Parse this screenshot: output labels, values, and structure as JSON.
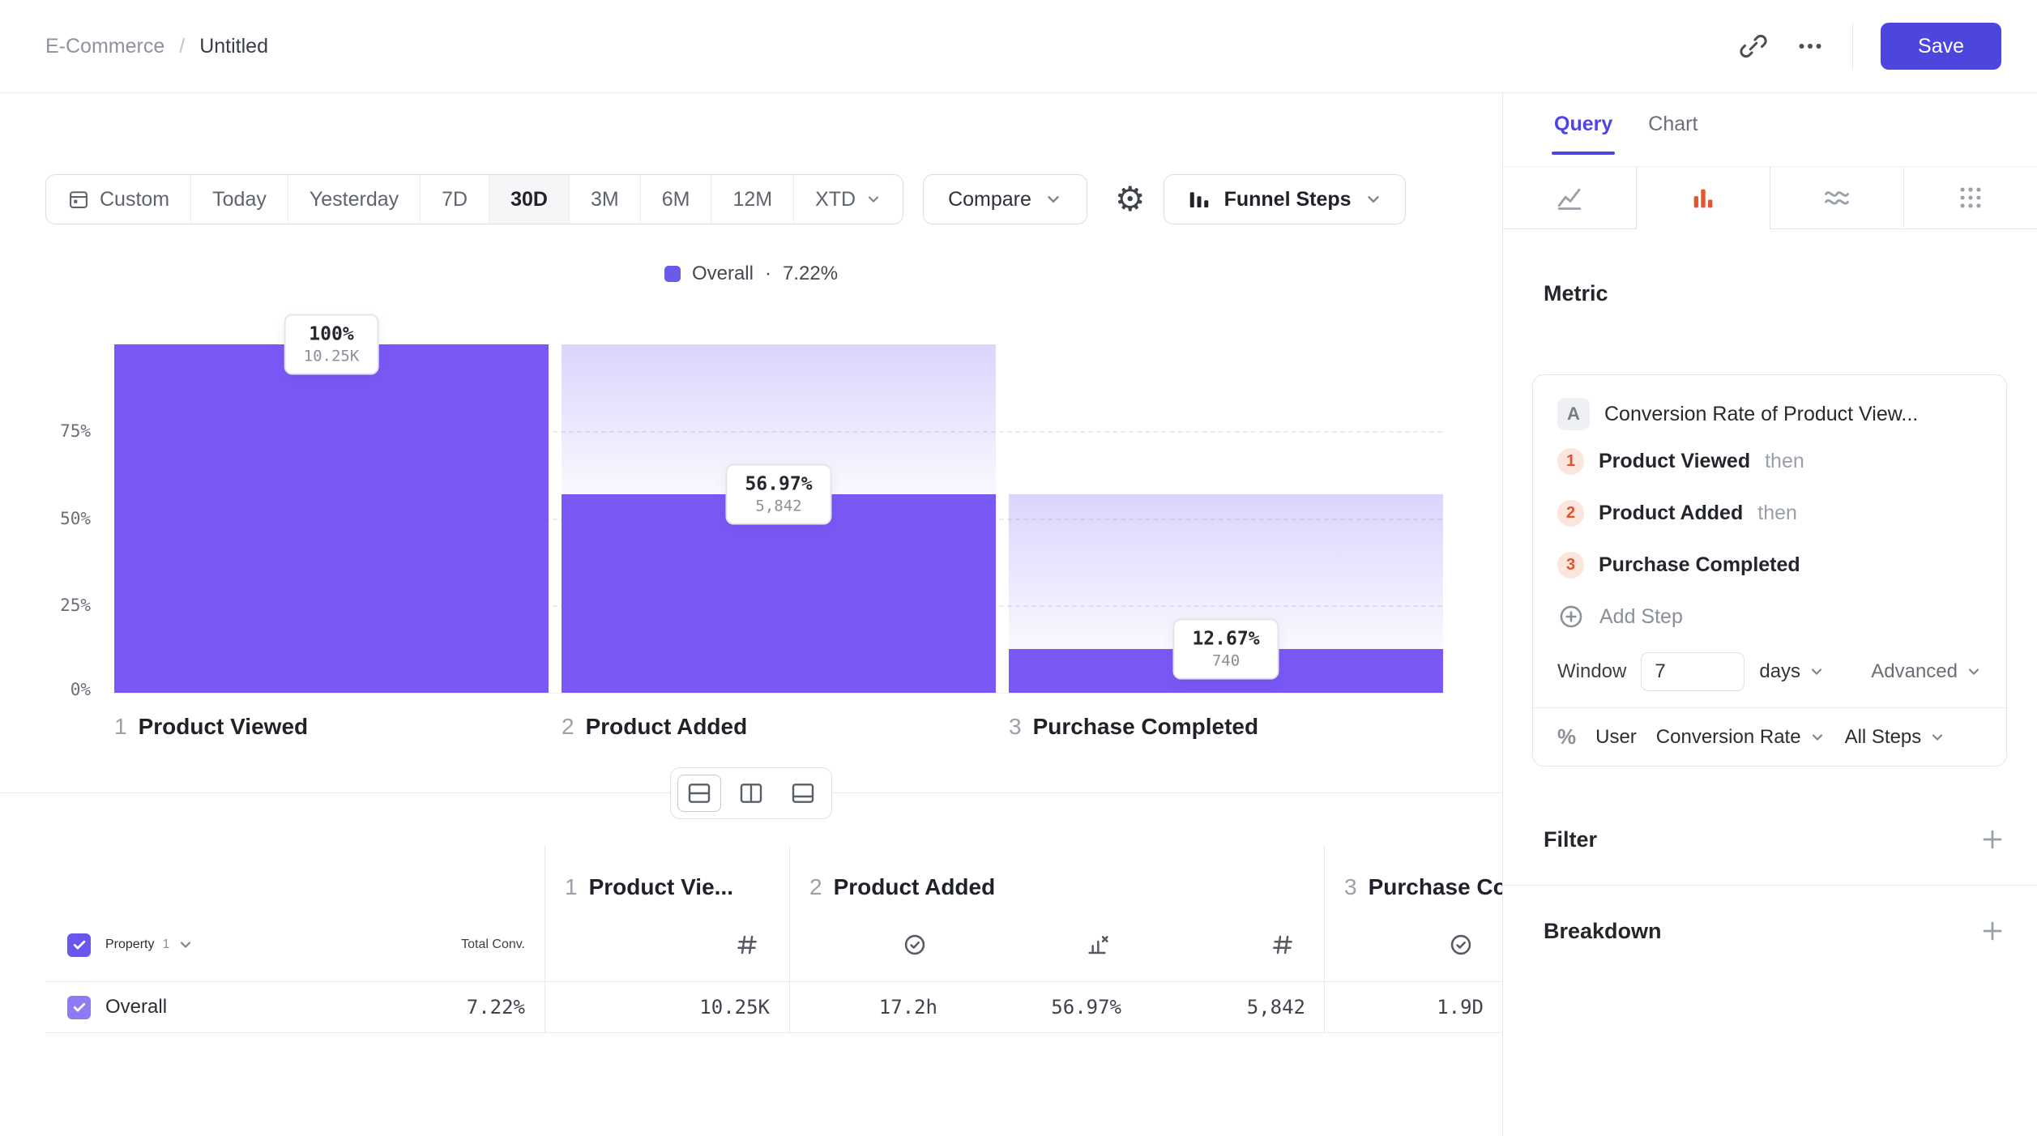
{
  "colors": {
    "accent": "#4F45E4",
    "save": "#4C45DE",
    "bar": "#7A58F6",
    "orange": "#DD5530",
    "orange_bg": "#FBE5DC"
  },
  "header": {
    "breadcrumb": {
      "root": "E-Commerce",
      "sep": "/",
      "current": "Untitled"
    },
    "save_label": "Save"
  },
  "toolbar": {
    "ranges": [
      "Custom",
      "Today",
      "Yesterday",
      "7D",
      "30D",
      "3M",
      "6M",
      "12M",
      "XTD"
    ],
    "selected": "30D",
    "compare_label": "Compare",
    "chart_type_label": "Funnel Steps"
  },
  "legend": {
    "name": "Overall",
    "sep": "·",
    "value": "7.22%"
  },
  "chart_data": {
    "type": "funnel",
    "series_label": "Overall",
    "overall_conversion": "7.22%",
    "ylim": [
      0,
      100
    ],
    "y_ticks": [
      "75%",
      "50%",
      "25%",
      "0%"
    ],
    "grid": "dashed-horizontal",
    "steps": [
      {
        "index": "1",
        "name": "Product Viewed",
        "pct": 100,
        "pct_label": "100%",
        "count": 10250,
        "count_label": "10.25K"
      },
      {
        "index": "2",
        "name": "Product Added",
        "pct": 56.97,
        "pct_label": "56.97%",
        "count": 5842,
        "count_label": "5,842"
      },
      {
        "index": "3",
        "name": "Purchase Completed",
        "pct": 12.67,
        "pct_label": "12.67%",
        "count": 740,
        "count_label": "740"
      }
    ]
  },
  "table": {
    "property_label": "Property",
    "property_index": "1",
    "total_conv_header": "Total Conv.",
    "columns": [
      {
        "num": "1",
        "name": "Product Vie...",
        "metrics": [
          {
            "icon": "hash-icon",
            "value": "10.25K"
          }
        ]
      },
      {
        "num": "2",
        "name": "Product Added",
        "metrics": [
          {
            "icon": "clock-check-icon",
            "value": "17.2h"
          },
          {
            "icon": "chart-dropoff-icon",
            "value": "56.97%"
          },
          {
            "icon": "hash-icon",
            "value": "5,842"
          }
        ]
      },
      {
        "num": "3",
        "name": "Purchase Completed",
        "metrics": [
          {
            "icon": "clock-check-icon",
            "value": "1.9D"
          }
        ]
      }
    ],
    "row": {
      "label": "Overall",
      "total": "7.22%"
    }
  },
  "query_panel": {
    "tabs": [
      {
        "label": "Query"
      },
      {
        "label": "Chart"
      }
    ],
    "active_tab": "Query",
    "metric_heading": "Metric",
    "card": {
      "badge": "A",
      "title": "Conversion Rate of Product View...",
      "steps": [
        {
          "num": "1",
          "label": "Product Viewed",
          "suffix": "then"
        },
        {
          "num": "2",
          "label": "Product Added",
          "suffix": "then"
        },
        {
          "num": "3",
          "label": "Purchase Completed",
          "suffix": ""
        }
      ],
      "add_step_label": "Add Step",
      "window": {
        "label": "Window",
        "value": "7",
        "unit": "days",
        "advanced_label": "Advanced"
      },
      "measure": {
        "symbol": "%",
        "entity": "User",
        "metric": "Conversion Rate",
        "scope": "All Steps"
      }
    },
    "sections": [
      {
        "label": "Filter"
      },
      {
        "label": "Breakdown"
      }
    ]
  },
  "icons": {
    "header": [
      "link-icon",
      "ellipsis-icon"
    ],
    "toolbar": [
      "calendar-icon",
      "gear-icon",
      "funnel-bars-icon",
      "chevron-down-icon"
    ],
    "view_toggles": [
      "split-rows-icon",
      "split-columns-icon",
      "bottom-panel-icon"
    ],
    "table_metrics": [
      "hash-icon",
      "clock-check-icon",
      "chart-dropoff-icon"
    ],
    "query_icon_tabs": [
      "line-chart-icon",
      "bar-chart-icon",
      "waves-icon",
      "grid-dots-icon"
    ],
    "misc": [
      "plus-circle-icon",
      "plus-icon",
      "percent-icon",
      "checkbox-check-icon"
    ]
  }
}
